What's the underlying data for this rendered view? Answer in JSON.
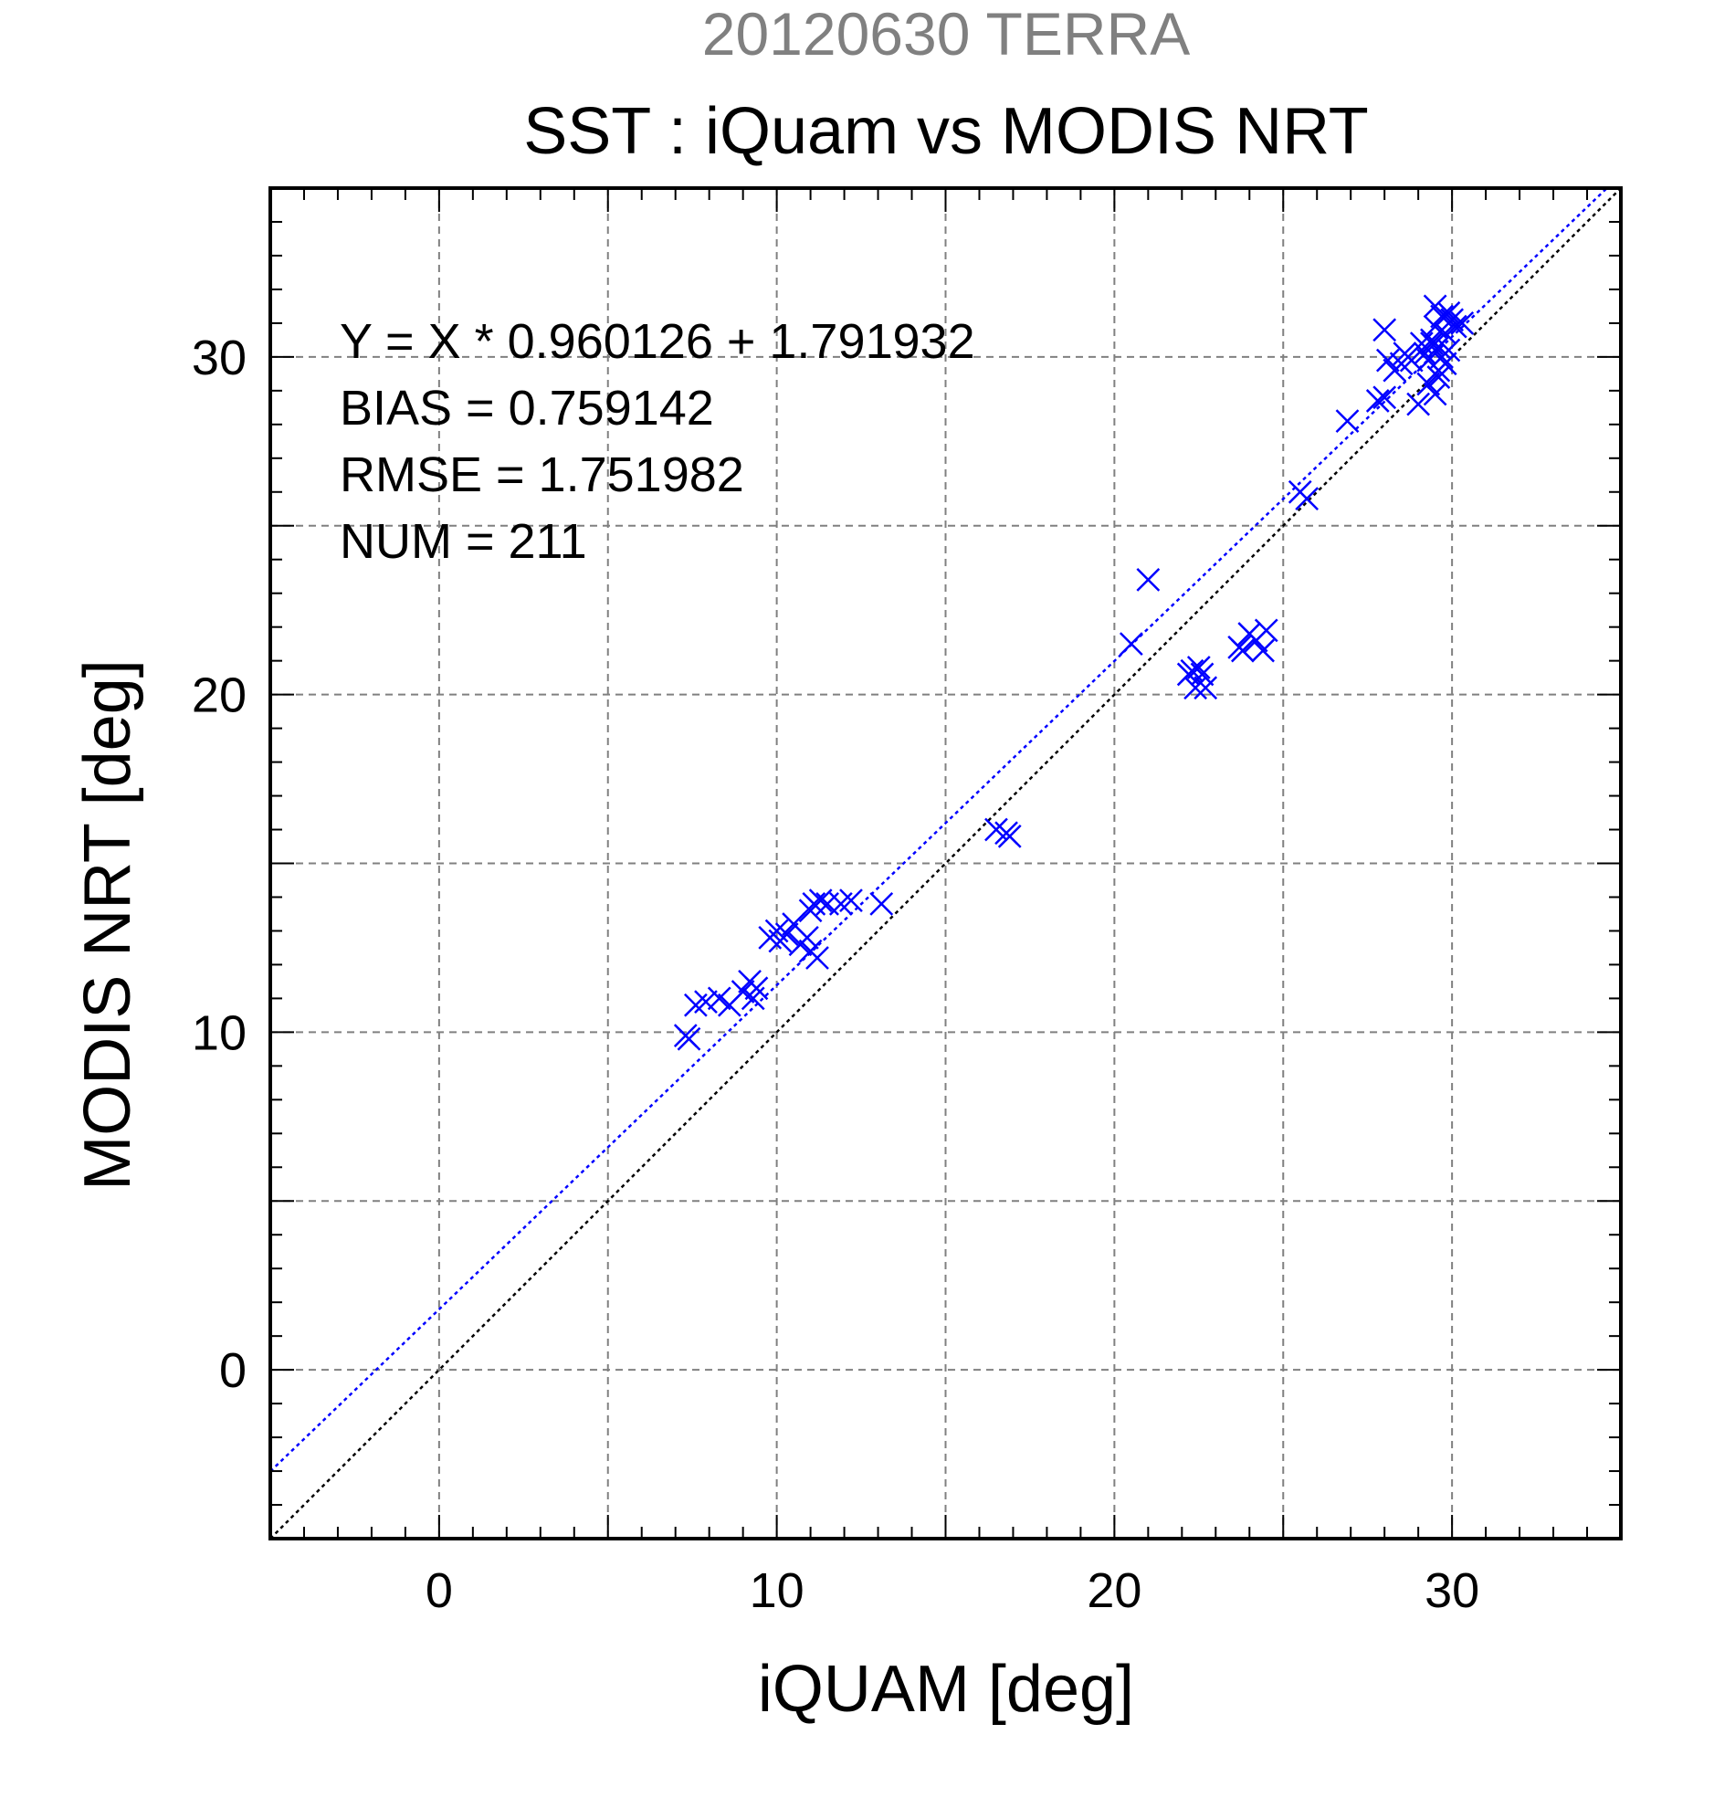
{
  "chart_data": {
    "type": "scatter",
    "supertitle": "20120630 TERRA",
    "title": "SST : iQuam vs MODIS NRT",
    "xlabel": "iQUAM [deg]",
    "ylabel": "MODIS NRT [deg]",
    "xlim": [
      -5,
      35
    ],
    "ylim": [
      -5,
      35
    ],
    "xticks": [
      0,
      10,
      20,
      30
    ],
    "yticks": [
      0,
      10,
      20,
      30
    ],
    "grid": true,
    "stats": [
      "Y = X * 0.960126 + 1.791932",
      "BIAS = 0.759142",
      "RMSE = 1.751982",
      "NUM = 211"
    ],
    "colors": {
      "points": "#0000ff",
      "fit_line": "#0000ff",
      "identity_line": "#000000",
      "supertitle": "#808080",
      "grid": "#808080"
    },
    "fit_line": {
      "slope": 0.960126,
      "intercept": 1.791932
    },
    "identity_line": {
      "slope": 1,
      "intercept": 0
    },
    "series": [
      {
        "marker": "x",
        "x": [
          7.3,
          7.4,
          7.6,
          7.9,
          8.3,
          8.6,
          9.0,
          9.2,
          9.3,
          9.4,
          9.8,
          10.0,
          10.1,
          10.3,
          10.5,
          10.7,
          10.9,
          11.0,
          11.0,
          11.1,
          11.2,
          11.3,
          11.5,
          11.9,
          12.2,
          13.1,
          16.5,
          16.8,
          16.9,
          20.5,
          21.0,
          22.2,
          22.3,
          22.4,
          22.5,
          22.6,
          22.7,
          23.7,
          23.8,
          24.0,
          24.2,
          24.4,
          24.5,
          25.5,
          25.7,
          26.9,
          27.8,
          28.0,
          28.0,
          28.1,
          28.3,
          28.5,
          28.6,
          28.8,
          29.0,
          29.1,
          29.2,
          29.3,
          29.4,
          29.5,
          29.5,
          29.6,
          29.7,
          29.8,
          29.9,
          30.0,
          29.4,
          29.6,
          29.8,
          30.1,
          30.3,
          29.5,
          29.7,
          29.9,
          29.3,
          29.6
        ],
        "y": [
          9.9,
          9.8,
          10.8,
          10.9,
          11.0,
          10.8,
          11.2,
          11.5,
          11.0,
          11.3,
          12.8,
          13.0,
          12.7,
          12.9,
          13.2,
          12.6,
          12.8,
          12.4,
          13.6,
          13.8,
          12.2,
          13.9,
          13.8,
          13.8,
          13.9,
          13.8,
          16.0,
          15.9,
          15.8,
          21.5,
          23.4,
          20.6,
          20.7,
          20.2,
          20.8,
          20.6,
          20.2,
          21.4,
          21.3,
          21.8,
          21.6,
          21.3,
          21.9,
          26.0,
          25.8,
          28.1,
          28.7,
          28.8,
          30.8,
          29.9,
          29.6,
          29.8,
          30.1,
          29.9,
          28.6,
          30.4,
          30.1,
          29.2,
          30.5,
          30.9,
          28.9,
          30.3,
          31.2,
          30.7,
          30.2,
          31.1,
          30.4,
          29.6,
          29.8,
          30.9,
          31.0,
          31.5,
          30.0,
          31.3,
          29.9,
          29.4
        ]
      }
    ]
  }
}
